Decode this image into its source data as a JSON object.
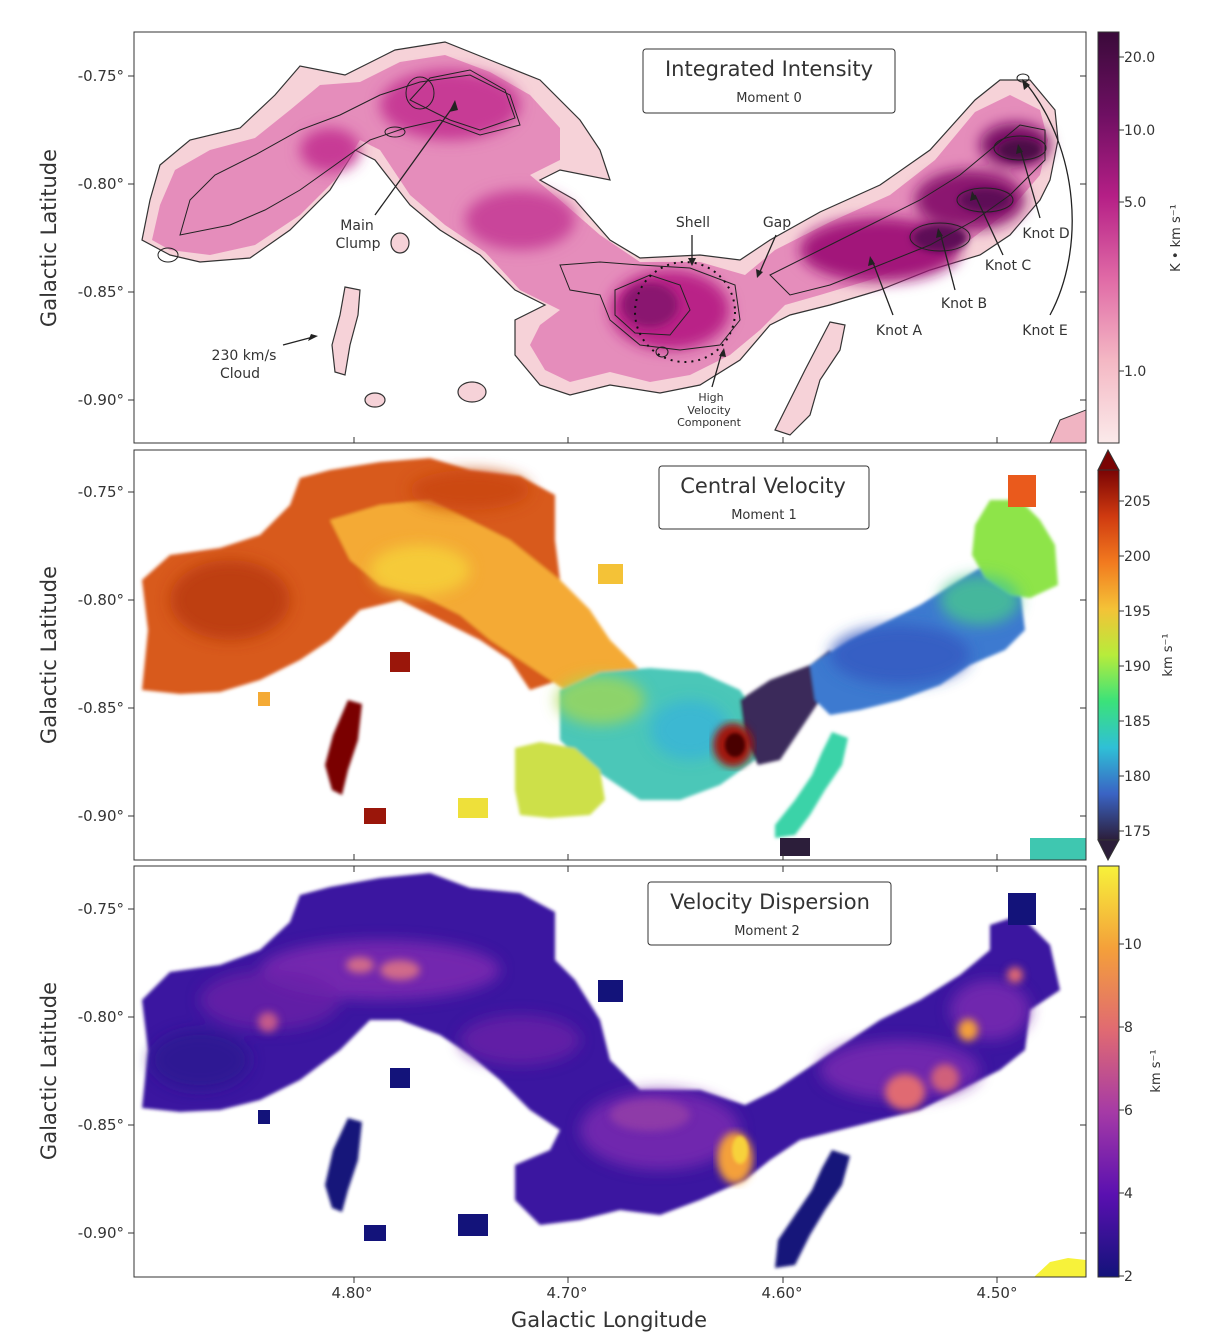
{
  "chart_data": [
    {
      "type": "heatmap",
      "panel": "moment0",
      "title": "Integrated Intensity",
      "subtitle": "Moment 0",
      "ylabel": "Galactic Latitude",
      "y_ticks": [
        "-0.75°",
        "-0.80°",
        "-0.85°",
        "-0.90°"
      ],
      "colorbar": {
        "label": "K • km s⁻¹",
        "scale": "log",
        "range": [
          0.6,
          25
        ],
        "ticks": [
          "20.0",
          "10.0",
          "5.0",
          "1.0"
        ],
        "colormap": [
          "#fbeaea",
          "#f4b8c4",
          "#e06aa6",
          "#b51f86",
          "#6e0f62",
          "#3a0a3a"
        ]
      },
      "annotations": [
        "Main\nClump",
        "230 km/s\nCloud",
        "Shell",
        "Gap",
        "High\nVelocity\nComponent",
        "Knot A",
        "Knot B",
        "Knot C",
        "Knot D",
        "Knot E"
      ]
    },
    {
      "type": "heatmap",
      "panel": "moment1",
      "title": "Central Velocity",
      "subtitle": "Moment 1",
      "ylabel": "Galactic Latitude",
      "y_ticks": [
        "-0.75°",
        "-0.80°",
        "-0.85°",
        "-0.90°"
      ],
      "colorbar": {
        "label": "km s⁻¹",
        "scale": "linear",
        "range": [
          173,
          209
        ],
        "ticks": [
          "205",
          "200",
          "195",
          "190",
          "185",
          "180",
          "175"
        ],
        "colormap": [
          "#2c1e3a",
          "#3a64c4",
          "#2fc0d6",
          "#3be27a",
          "#b7ec3b",
          "#f4c237",
          "#f27a1f",
          "#cf3a10",
          "#7a0404"
        ]
      },
      "regions_kms": {
        "western_clump": 203,
        "main_clump_ridge": 196,
        "shell_area": 184,
        "gap": 177,
        "knots": 182,
        "high_velocity_component": 209,
        "cloud_230": 230
      }
    },
    {
      "type": "heatmap",
      "panel": "moment2",
      "title": "Velocity Dispersion",
      "subtitle": "Moment 2",
      "ylabel": "Galactic Latitude",
      "xlabel": "Galactic Longitude",
      "x_ticks": [
        "4.80°",
        "4.70°",
        "4.60°",
        "4.50°"
      ],
      "y_ticks": [
        "-0.75°",
        "-0.80°",
        "-0.85°",
        "-0.90°"
      ],
      "colorbar": {
        "label": "km s⁻¹",
        "scale": "linear",
        "range": [
          2,
          11.8
        ],
        "ticks": [
          "10",
          "8",
          "6",
          "4",
          "2"
        ],
        "colormap": [
          "#13137a",
          "#5a10b0",
          "#a53aa6",
          "#e06a72",
          "#f4a03a",
          "#f7f23a"
        ]
      },
      "regions_kms": {
        "typical": 4,
        "main_clump_hotspots": 6.5,
        "shell_edge": 10,
        "knots": 7
      }
    }
  ]
}
